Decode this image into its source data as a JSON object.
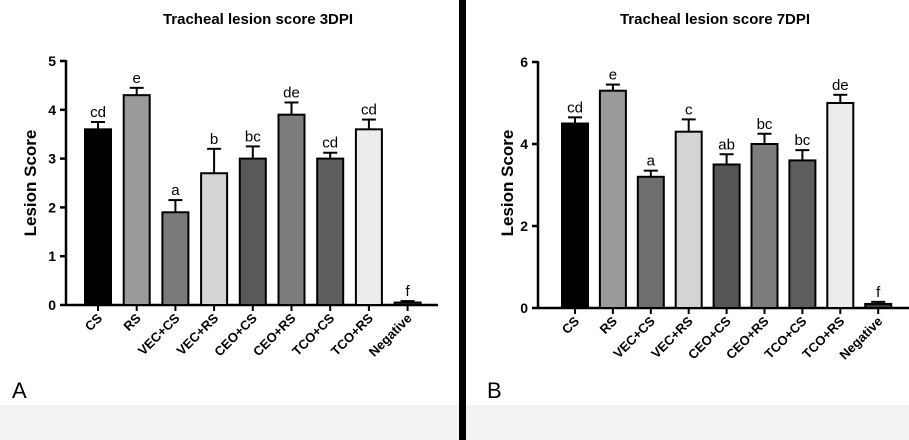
{
  "chart_data": [
    {
      "type": "bar",
      "panel_label": "A",
      "title": "Tracheal lesion score 3DPI",
      "ylabel": "Lesion Score",
      "xlabel": "",
      "ylim": [
        0,
        5
      ],
      "yticks": [
        "0",
        "1",
        "2",
        "3",
        "4",
        "5"
      ],
      "categories": [
        "CS",
        "RS",
        "VEC+CS",
        "VEC+RS",
        "CEO+CS",
        "CEO+RS",
        "TCO+CS",
        "TCO+RS",
        "Negative"
      ],
      "values": [
        3.6,
        4.3,
        1.9,
        2.7,
        3.0,
        3.9,
        3.0,
        3.6,
        0.05
      ],
      "errors": [
        0.15,
        0.15,
        0.25,
        0.5,
        0.25,
        0.25,
        0.12,
        0.2,
        0.03
      ],
      "significance": [
        "cd",
        "e",
        "a",
        "b",
        "bc",
        "de",
        "cd",
        "cd",
        "f"
      ],
      "bar_colors": [
        "#000000",
        "#9a9a9a",
        "#7a7a7a",
        "#d4d4d4",
        "#595959",
        "#7c7c7c",
        "#5e5e5e",
        "#ececec",
        "#3a3a3a"
      ],
      "grid": false
    },
    {
      "type": "bar",
      "panel_label": "B",
      "title": "Tracheal lesion score 7DPI",
      "ylabel": "Lesion Score",
      "xlabel": "",
      "ylim": [
        0,
        6
      ],
      "yticks": [
        "0",
        "2",
        "4",
        "6"
      ],
      "categories": [
        "CS",
        "RS",
        "VEC+CS",
        "VEC+RS",
        "CEO+CS",
        "CEO+RS",
        "TCO+CS",
        "TCO+RS",
        "Negative"
      ],
      "values": [
        4.5,
        5.3,
        3.2,
        4.3,
        3.5,
        4.0,
        3.6,
        5.0,
        0.1
      ],
      "errors": [
        0.15,
        0.15,
        0.15,
        0.3,
        0.25,
        0.25,
        0.25,
        0.2,
        0.05
      ],
      "significance": [
        "cd",
        "e",
        "a",
        "c",
        "ab",
        "bc",
        "bc",
        "de",
        "f"
      ],
      "bar_colors": [
        "#000000",
        "#9a9a9a",
        "#6e6e6e",
        "#d4d4d4",
        "#555555",
        "#7c7c7c",
        "#5e5e5e",
        "#ececec",
        "#3a3a3a"
      ],
      "grid": false
    }
  ]
}
